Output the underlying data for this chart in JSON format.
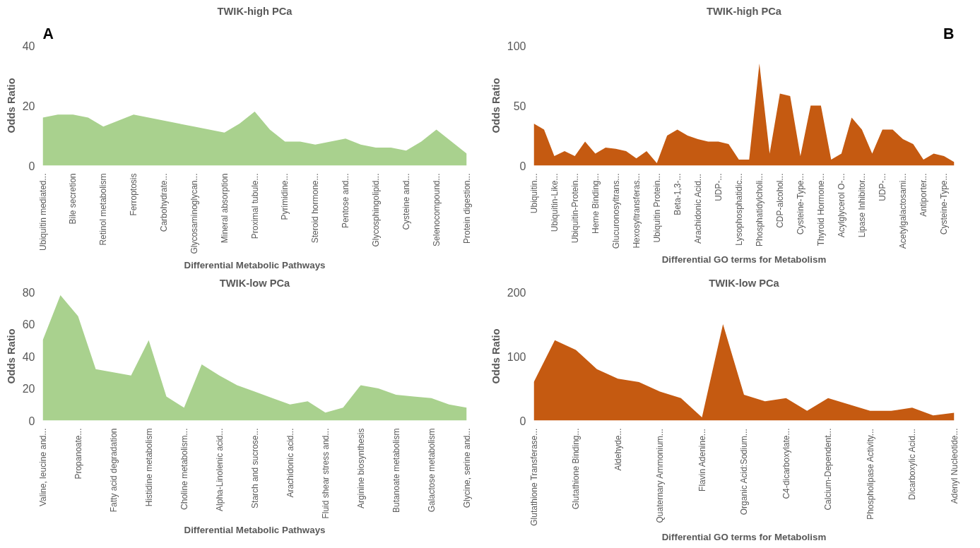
{
  "chart_data": [
    {
      "type": "area",
      "title": "TWIK-high PCa",
      "xlabel": "Differential Metabolic Pathways",
      "ylabel": "Odds Ratio",
      "annotations": [
        "A"
      ],
      "color": "#a9d18e",
      "grid": false,
      "ylim": [
        0,
        40
      ],
      "yticks": [
        0,
        20,
        40
      ],
      "categories": [
        "Ubiquitin mediated...",
        null,
        "Bile secretion",
        null,
        "Retinol metabolism",
        null,
        "Ferroptosis",
        null,
        "Carbohydrate...",
        null,
        "Glycosaminoglycan...",
        null,
        "Mineral absorption",
        null,
        "Proximal tubule...",
        null,
        "Pyrimidine...",
        null,
        "Steroid hormone...",
        null,
        "Pentose and...",
        null,
        "Glycosphingolipid...",
        null,
        "Cysteine and...",
        null,
        "Selenocompound...",
        null,
        "Protein digestion..."
      ],
      "values": [
        16,
        17,
        17,
        16,
        13,
        15,
        17,
        16,
        15,
        14,
        13,
        12,
        11,
        14,
        18,
        12,
        8,
        8,
        7,
        8,
        9,
        7,
        6,
        6,
        5,
        8,
        12,
        8,
        4
      ]
    },
    {
      "type": "area",
      "title": "TWIK-high PCa",
      "xlabel": "Differential GO terms for Metabolism",
      "ylabel": "Odds Ratio",
      "annotations": [
        "B"
      ],
      "color": "#c55a11",
      "grid": false,
      "ylim": [
        0,
        100
      ],
      "yticks": [
        0,
        50,
        100
      ],
      "categories": [
        "Ubiquitin...",
        null,
        "Ubiquitin-Like...",
        null,
        "Ubiquitin-Protein...",
        null,
        "Heme Binding...",
        null,
        "Glucuronosyltrans...",
        null,
        "Hexosyltransferas...",
        null,
        "Ubiquitin Protein...",
        null,
        "Beta-1,3-...",
        null,
        "Arachidonic Acid...",
        null,
        "UDP-...",
        null,
        "Lysophosphatidic...",
        null,
        "Phosphatidylcholi...",
        null,
        "CDP-alcohol...",
        null,
        "Cysteine-Type...",
        null,
        "Thyroid Hormone...",
        null,
        "Acylglycerol O-...",
        null,
        "Lipase Inhibitor...",
        null,
        "UDP-...",
        null,
        "Acetylgalactosami...",
        null,
        "Antiporter...",
        null,
        "Cysteine-Type...",
        null
      ],
      "values": [
        35,
        30,
        8,
        12,
        8,
        20,
        10,
        15,
        14,
        12,
        6,
        12,
        2,
        25,
        30,
        25,
        22,
        20,
        20,
        18,
        5,
        5,
        85,
        10,
        60,
        58,
        8,
        50,
        50,
        5,
        10,
        40,
        30,
        10,
        30,
        30,
        22,
        18,
        5,
        10,
        8,
        3
      ]
    },
    {
      "type": "area",
      "title": "TWIK-low PCa",
      "xlabel": "Differential Metabolic Pathways",
      "ylabel": "Odds Ratio",
      "color": "#a9d18e",
      "grid": false,
      "ylim": [
        0,
        80
      ],
      "yticks": [
        0,
        20,
        40,
        60,
        80
      ],
      "categories": [
        "Valine, leucine and...",
        null,
        "Propanoate...",
        null,
        "Fatty acid degradation",
        null,
        "Histidine metabolism",
        null,
        "Choline metabolism...",
        null,
        "Alpha-Linolenic acid...",
        null,
        "Starch and sucrose...",
        null,
        "Arachidonic acid...",
        null,
        "Fluid shear stress and...",
        null,
        "Arginine biosynthesis",
        null,
        "Butanoate metabolism",
        null,
        "Galactose metabolism",
        null,
        "Glycine, serine and..."
      ],
      "values": [
        50,
        78,
        65,
        32,
        30,
        28,
        50,
        15,
        8,
        35,
        28,
        22,
        18,
        14,
        10,
        12,
        5,
        8,
        22,
        20,
        16,
        15,
        14,
        10,
        8
      ]
    },
    {
      "type": "area",
      "title": "TWIK-low PCa",
      "xlabel": "Differential GO terms for Metabolism",
      "ylabel": "Odds Ratio",
      "color": "#c55a11",
      "grid": false,
      "ylim": [
        0,
        200
      ],
      "yticks": [
        0,
        100,
        200
      ],
      "categories": [
        "Glutathione Transferase...",
        null,
        "Glutathione Binding...",
        null,
        "Aldehyde...",
        null,
        "Quaternary Ammonium...",
        null,
        "Flavin Adenine...",
        null,
        "Organic Acid:Sodium...",
        null,
        "C4-dicarboxylate...",
        null,
        "Calcium-Dependent...",
        null,
        "Phospholipase Activity...",
        null,
        "Dicarboxylic Acid...",
        null,
        "Adenyl Nucleotide..."
      ],
      "values": [
        60,
        125,
        110,
        80,
        65,
        60,
        45,
        35,
        5,
        150,
        40,
        30,
        35,
        15,
        35,
        25,
        15,
        15,
        20,
        8,
        12
      ]
    }
  ]
}
